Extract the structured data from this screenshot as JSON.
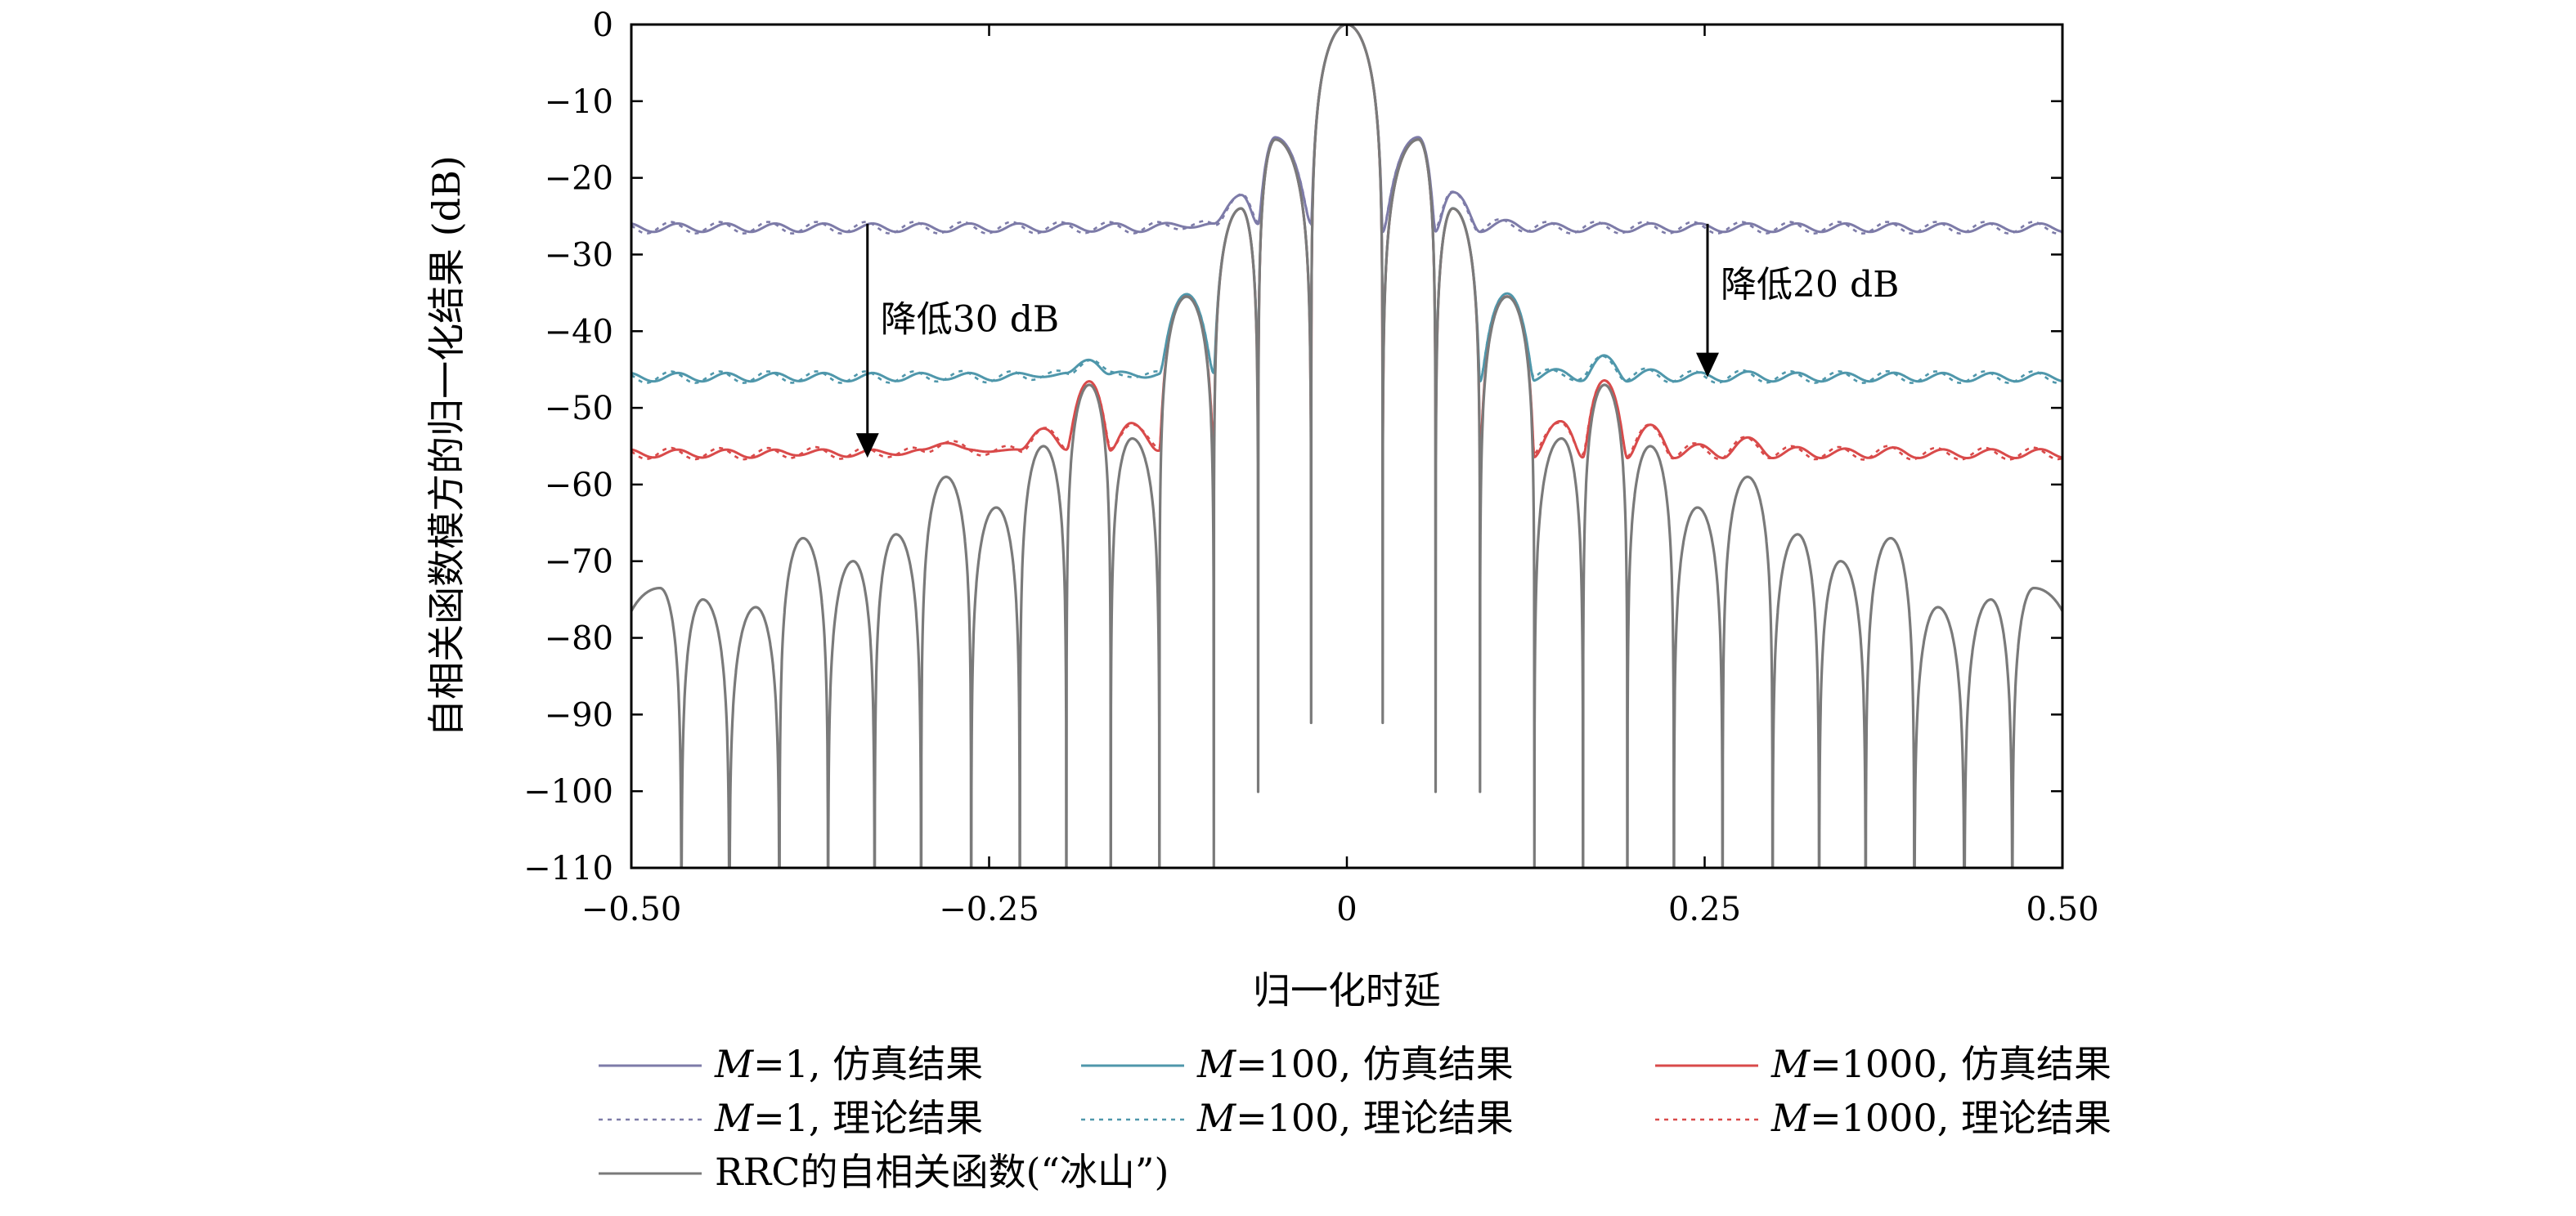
{
  "chart_data": {
    "type": "line",
    "title": "",
    "xlabel": "归一化时延",
    "ylabel": "自相关函数模方的归一化结果 (dB)",
    "xlim": [
      -0.5,
      0.5
    ],
    "ylim": [
      -110,
      0
    ],
    "xticks": [
      -0.5,
      -0.25,
      0,
      0.25,
      0.5
    ],
    "xtick_labels": [
      "−0.50",
      "−0.25",
      "0",
      "0.25",
      "0.50"
    ],
    "yticks": [
      0,
      -10,
      -20,
      -30,
      -40,
      -50,
      -60,
      -70,
      -80,
      -90,
      -100,
      -110
    ],
    "ytick_labels": [
      "0",
      "−10",
      "−20",
      "−30",
      "−40",
      "−50",
      "−60",
      "−70",
      "−80",
      "−90",
      "−100",
      "−110"
    ],
    "grid": false,
    "legend_position": "bottom",
    "colors": {
      "m1": "#7d7ba8",
      "m100": "#4f97ab",
      "m1000": "#d94a4a",
      "rrc": "#7a7a7a"
    },
    "series": [
      {
        "name_prefix": "M",
        "name_value": "=1, 仿真结果",
        "style": "solid",
        "color_key": "m1",
        "floor_db": -26.5
      },
      {
        "name_prefix": "M",
        "name_value": "=100, 仿真结果",
        "style": "solid",
        "color_key": "m100",
        "floor_db": -46.0
      },
      {
        "name_prefix": "M",
        "name_value": "=1000, 仿真结果",
        "style": "solid",
        "color_key": "m1000",
        "floor_db": -56.0
      },
      {
        "name_prefix": "M",
        "name_value": "=1, 理论结果",
        "style": "dotted",
        "color_key": "m1",
        "floor_db": -26.5
      },
      {
        "name_prefix": "M",
        "name_value": "=100, 理论结果",
        "style": "dotted",
        "color_key": "m100",
        "floor_db": -46.0
      },
      {
        "name_prefix": "M",
        "name_value": "=1000, 理论结果",
        "style": "dotted",
        "color_key": "m1000",
        "floor_db": -56.0
      },
      {
        "name_prefix": "",
        "name_value": "RRC的自相关函数(“冰山”)",
        "style": "solid",
        "color_key": "rrc"
      }
    ],
    "rrc_peaks": {
      "x": [
        0.0,
        0.05,
        0.074,
        0.112,
        0.15,
        0.18,
        0.212,
        0.245,
        0.28,
        0.315,
        0.345,
        0.38,
        0.413,
        0.45,
        0.48
      ],
      "y": [
        0,
        -15,
        -24,
        -35.5,
        -54,
        -47,
        -55,
        -63,
        -59,
        -66.5,
        -70,
        -67,
        -76,
        -75,
        -73.5
      ]
    },
    "annotations": [
      {
        "text": "降低30 dB",
        "x": -0.335,
        "y_from": -26,
        "y_to": -56.5
      },
      {
        "text": "降低20 dB",
        "x": 0.252,
        "y_from": -26,
        "y_to": -46
      }
    ]
  }
}
